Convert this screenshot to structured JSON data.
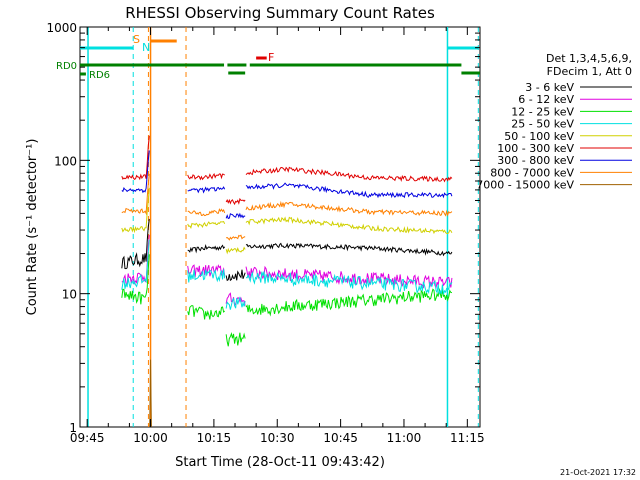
{
  "chart_data": {
    "type": "line",
    "title": "RHESSI Observing Summary Count Rates",
    "xlabel": "Start Time (28-Oct-11 09:43:42)",
    "ylabel": "Count Rate (s⁻¹ detector⁻¹)",
    "yscale": "log",
    "ylim": [
      1,
      1000
    ],
    "x_range_minutes": [
      -1.7,
      93
    ],
    "x_ticks": [
      {
        "t": 0,
        "label": "09:45"
      },
      {
        "t": 15,
        "label": "10:00"
      },
      {
        "t": 30,
        "label": "10:15"
      },
      {
        "t": 45,
        "label": "10:30"
      },
      {
        "t": 60,
        "label": "10:45"
      },
      {
        "t": 75,
        "label": "11:00"
      },
      {
        "t": 90,
        "label": "11:15"
      }
    ],
    "y_ticks": [
      {
        "v": 1,
        "label": "1"
      },
      {
        "v": 10,
        "label": "10"
      },
      {
        "v": 100,
        "label": "100"
      },
      {
        "v": 1000,
        "label": "1000"
      }
    ],
    "legend_header": [
      "Det 1,3,4,5,6,9,",
      "FDecim 1, Att 0"
    ],
    "series": [
      {
        "name": "3 - 6 keV",
        "color": "#000000",
        "levels": [
          17,
          22,
          23,
          22,
          20
        ]
      },
      {
        "name": "6 - 12 keV",
        "color": "#e000e0",
        "levels": [
          13,
          15,
          14,
          13,
          12
        ]
      },
      {
        "name": "12 - 25 keV",
        "color": "#00e000",
        "levels": [
          10,
          7,
          8,
          9,
          10
        ]
      },
      {
        "name": "25 - 50 keV",
        "color": "#00e0e0",
        "levels": [
          12,
          14,
          13,
          12,
          11
        ]
      },
      {
        "name": "50 - 100 keV",
        "color": "#d0d000",
        "levels": [
          30,
          33,
          36,
          31,
          29
        ]
      },
      {
        "name": "100 - 300 keV",
        "color": "#e00000",
        "levels": [
          75,
          75,
          86,
          74,
          72
        ]
      },
      {
        "name": "300 - 800 keV",
        "color": "#0000e0",
        "levels": [
          60,
          60,
          65,
          55,
          55
        ]
      },
      {
        "name": "800 - 7000 keV",
        "color": "#ff8000",
        "levels": [
          42,
          40,
          47,
          41,
          40
        ]
      },
      {
        "name": "7000 - 15000 keV",
        "color": "#a06000",
        "levels": [
          1,
          1,
          1,
          1,
          1
        ]
      }
    ],
    "flags": {
      "s_label": "S",
      "n_label": "N",
      "f_label": "F",
      "rd0_label": "RD0",
      "rd6_label": "RD6"
    },
    "timestamp": "21-Oct-2021 17:32"
  }
}
